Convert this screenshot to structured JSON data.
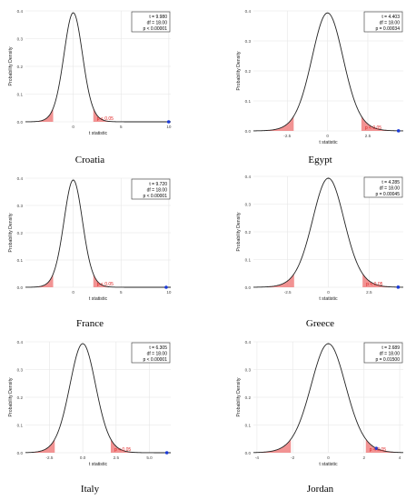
{
  "page": {
    "background": "#ffffff"
  },
  "style": {
    "curve_color": "#222222",
    "tail_color": "#f08080",
    "pval_color": "#e02020",
    "point_color": "#1a3ad8",
    "grid_color": "#e6e6e6"
  },
  "chart_data": [
    {
      "type": "line",
      "country": "Croatia",
      "xlabel": "t statistic",
      "ylabel": "Probability Density",
      "xlim": [
        -5,
        10.2
      ],
      "ylim": [
        0,
        0.4
      ],
      "xticks": [
        0,
        5,
        10
      ],
      "yticks": [
        0.0,
        0.1,
        0.2,
        0.3,
        0.4
      ],
      "ytick_labels": [
        "0.0",
        "0.1",
        "0.2",
        "0.3",
        "0.4"
      ],
      "df": 18,
      "critical_t": 2.101,
      "t_observed": 9.98,
      "stats": [
        "t = 9.980",
        "df = 18.00",
        "p < 0.00001"
      ],
      "p_label": "p < 0.05"
    },
    {
      "type": "line",
      "country": "Egypt",
      "xlabel": "t statistic",
      "ylabel": "Probability Density",
      "xlim": [
        -4.6,
        4.7
      ],
      "ylim": [
        0,
        0.4
      ],
      "xticks": [
        -2.5,
        0,
        2.5
      ],
      "yticks": [
        0.0,
        0.1,
        0.2,
        0.3,
        0.4
      ],
      "ytick_labels": [
        "0.0",
        "0.1",
        "0.2",
        "0.3",
        "0.4"
      ],
      "df": 18,
      "critical_t": 2.101,
      "t_observed": 4.403,
      "stats": [
        "t = 4.403",
        "df = 18.00",
        "p = 0.00034"
      ],
      "p_label": "p < 0.05"
    },
    {
      "type": "line",
      "country": "France",
      "xlabel": "t statistic",
      "ylabel": "Probability Density",
      "xlim": [
        -5,
        10.2
      ],
      "ylim": [
        0,
        0.4
      ],
      "xticks": [
        0,
        5,
        10
      ],
      "yticks": [
        0.0,
        0.1,
        0.2,
        0.3,
        0.4
      ],
      "ytick_labels": [
        "0.0",
        "0.1",
        "0.2",
        "0.3",
        "0.4"
      ],
      "df": 18,
      "critical_t": 2.101,
      "t_observed": 9.72,
      "stats": [
        "t = 9.720",
        "df = 18.00",
        "p < 0.00001"
      ],
      "p_label": "p < 0.05"
    },
    {
      "type": "line",
      "country": "Greece",
      "xlabel": "t statistic",
      "ylabel": "Probability Density",
      "xlim": [
        -4.6,
        4.6
      ],
      "ylim": [
        0,
        0.4
      ],
      "xticks": [
        -2.5,
        0,
        2.5
      ],
      "yticks": [
        0.0,
        0.1,
        0.2,
        0.3,
        0.4
      ],
      "ytick_labels": [
        "0.0",
        "0.1",
        "0.2",
        "0.3",
        "0.4"
      ],
      "df": 18,
      "critical_t": 2.101,
      "t_observed": 4.285,
      "stats": [
        "t = 4.285",
        "df = 18.00",
        "p = 0.00045"
      ],
      "p_label": "p < 0.05"
    },
    {
      "type": "line",
      "country": "Italy",
      "xlabel": "t statistic",
      "ylabel": "Probability Density",
      "xlim": [
        -4.3,
        6.6
      ],
      "ylim": [
        0,
        0.4
      ],
      "xticks": [
        -2.5,
        0,
        2.5,
        5
      ],
      "xtick_labels": [
        "-2.5",
        "0.0",
        "2.5",
        "5.0"
      ],
      "yticks": [
        0.0,
        0.1,
        0.2,
        0.3,
        0.4
      ],
      "ytick_labels": [
        "0.0",
        "0.1",
        "0.2",
        "0.3",
        "0.4"
      ],
      "df": 18,
      "critical_t": 2.101,
      "t_observed": 6.305,
      "stats": [
        "t = 6.305",
        "df = 18.00",
        "p < 0.00001"
      ],
      "p_label": "p < 0.05"
    },
    {
      "type": "line",
      "country": "Jordan",
      "xlabel": "t statistic",
      "ylabel": "Probability Density",
      "xlim": [
        -4.2,
        4.2
      ],
      "ylim": [
        0,
        0.4
      ],
      "xticks": [
        -4,
        -2,
        0,
        2,
        4
      ],
      "yticks": [
        0.0,
        0.1,
        0.2,
        0.3,
        0.4
      ],
      "ytick_labels": [
        "0.0",
        "0.1",
        "0.2",
        "0.3",
        "0.4"
      ],
      "df": 18,
      "critical_t": 2.101,
      "t_observed": 2.689,
      "stats": [
        "t = 2.689",
        "df = 18.00",
        "p = 0.01500"
      ],
      "p_label": "p < 0.05"
    }
  ]
}
